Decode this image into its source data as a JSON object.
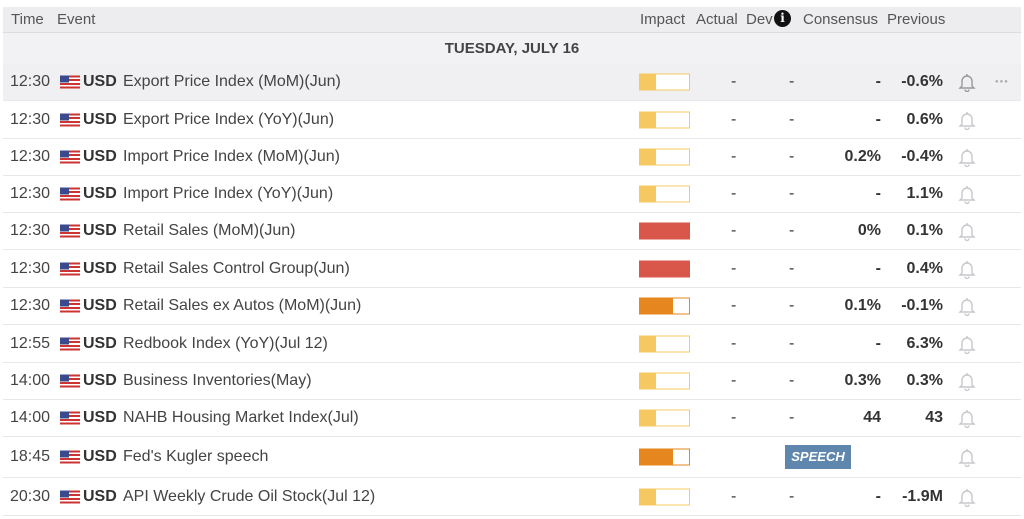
{
  "header": {
    "time": "Time",
    "event": "Event",
    "impact": "Impact",
    "actual": "Actual",
    "dev": "Dev",
    "info_icon": "i",
    "consensus": "Consensus",
    "previous": "Previous"
  },
  "date_label": "TUESDAY, JULY 16",
  "colors": {
    "low": "#f5c862",
    "medium": "#e5871e",
    "high": "#d9574a",
    "speech": "#5f87ad"
  },
  "rows": [
    {
      "time": "12:30",
      "currency": "USD",
      "event": "Export Price Index (MoM)(Jun)",
      "impact": "low",
      "actual": "-",
      "dev": "-",
      "consensus": "-",
      "previous": "-0.6%"
    },
    {
      "time": "12:30",
      "currency": "USD",
      "event": "Export Price Index (YoY)(Jun)",
      "impact": "low",
      "actual": "-",
      "dev": "-",
      "consensus": "-",
      "previous": "0.6%"
    },
    {
      "time": "12:30",
      "currency": "USD",
      "event": "Import Price Index (MoM)(Jun)",
      "impact": "low",
      "actual": "-",
      "dev": "-",
      "consensus": "0.2%",
      "previous": "-0.4%"
    },
    {
      "time": "12:30",
      "currency": "USD",
      "event": "Import Price Index (YoY)(Jun)",
      "impact": "low",
      "actual": "-",
      "dev": "-",
      "consensus": "-",
      "previous": "1.1%"
    },
    {
      "time": "12:30",
      "currency": "USD",
      "event": "Retail Sales (MoM)(Jun)",
      "impact": "high",
      "actual": "-",
      "dev": "-",
      "consensus": "0%",
      "previous": "0.1%"
    },
    {
      "time": "12:30",
      "currency": "USD",
      "event": "Retail Sales Control Group(Jun)",
      "impact": "high",
      "actual": "-",
      "dev": "-",
      "consensus": "-",
      "previous": "0.4%"
    },
    {
      "time": "12:30",
      "currency": "USD",
      "event": "Retail Sales ex Autos (MoM)(Jun)",
      "impact": "medium",
      "actual": "-",
      "dev": "-",
      "consensus": "0.1%",
      "previous": "-0.1%"
    },
    {
      "time": "12:55",
      "currency": "USD",
      "event": "Redbook Index (YoY)(Jul 12)",
      "impact": "low",
      "actual": "-",
      "dev": "-",
      "consensus": "-",
      "previous": "6.3%"
    },
    {
      "time": "14:00",
      "currency": "USD",
      "event": "Business Inventories(May)",
      "impact": "low",
      "actual": "-",
      "dev": "-",
      "consensus": "0.3%",
      "previous": "0.3%"
    },
    {
      "time": "14:00",
      "currency": "USD",
      "event": "NAHB Housing Market Index(Jul)",
      "impact": "low",
      "actual": "-",
      "dev": "-",
      "consensus": "44",
      "previous": "43"
    },
    {
      "time": "18:45",
      "currency": "USD",
      "event": "Fed's Kugler speech",
      "impact": "medium",
      "badge": "SPEECH"
    },
    {
      "time": "20:30",
      "currency": "USD",
      "event": "API Weekly Crude Oil Stock(Jul 12)",
      "impact": "low",
      "actual": "-",
      "dev": "-",
      "consensus": "-",
      "previous": "-1.9M"
    }
  ]
}
